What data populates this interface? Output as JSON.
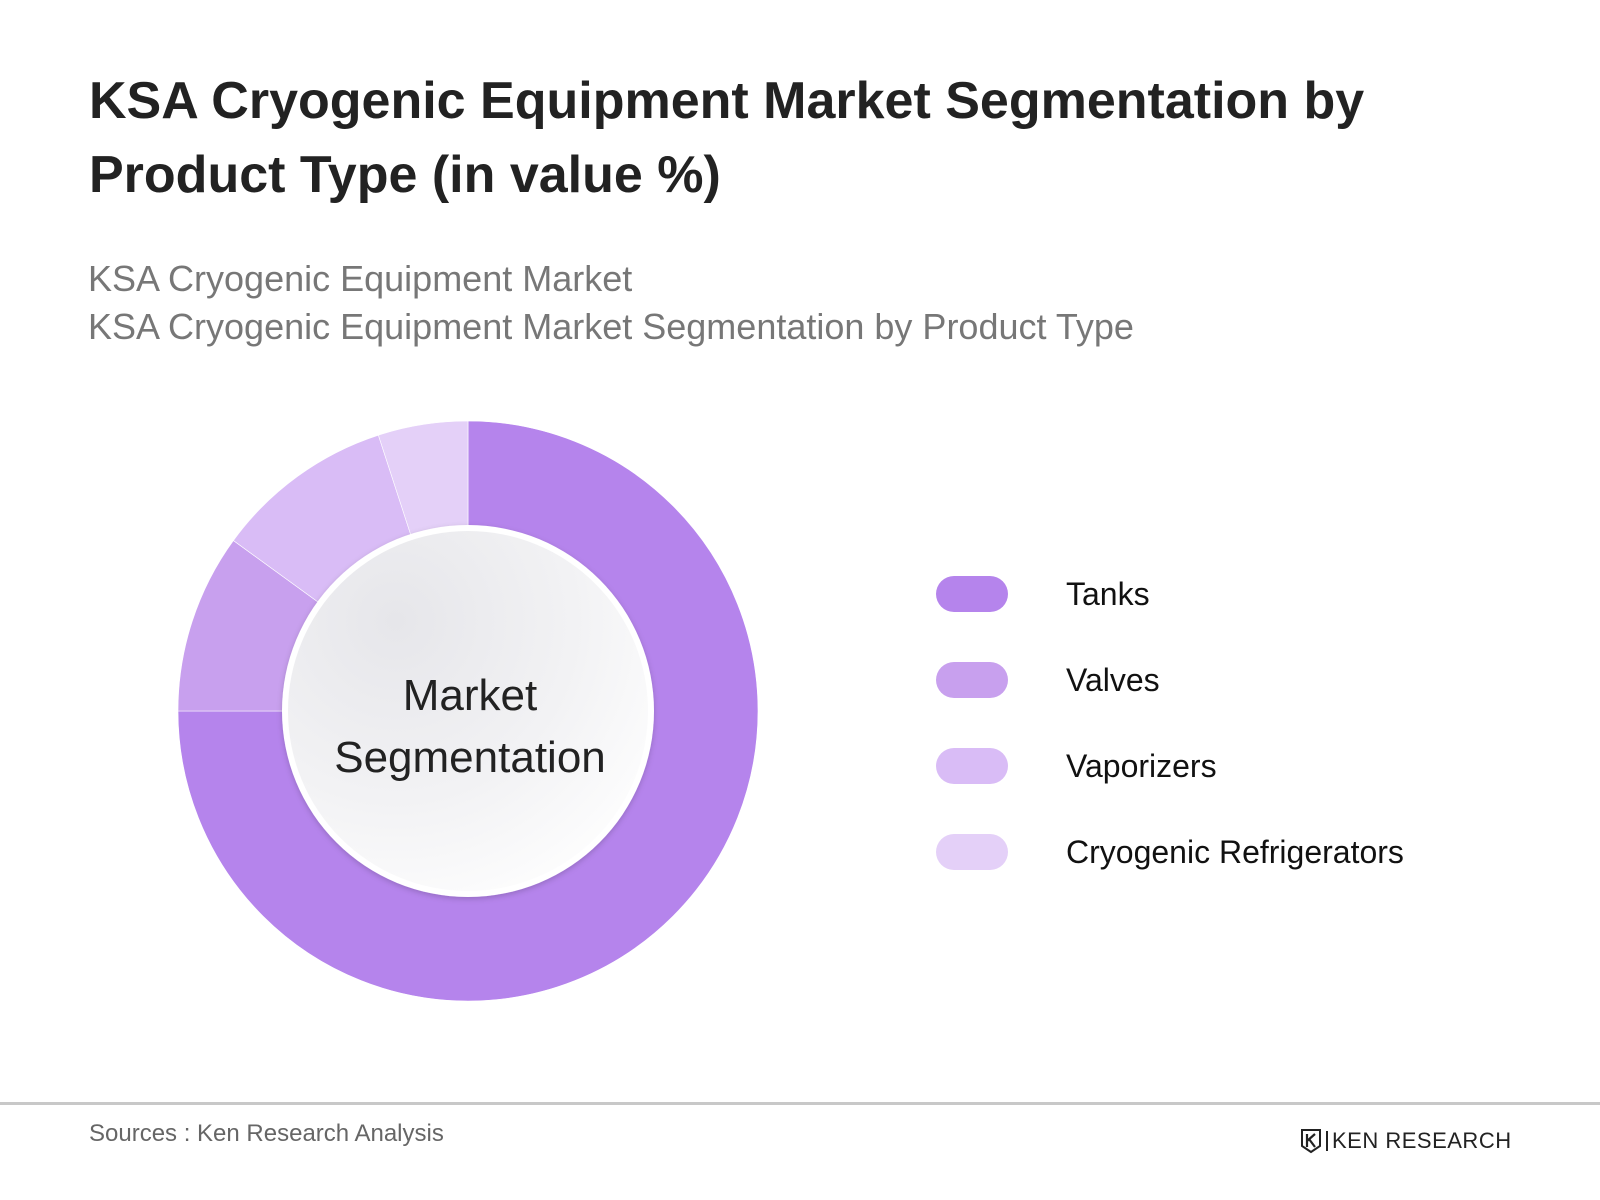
{
  "header": {
    "title": "KSA Cryogenic Equipment Market Segmentation by Product Type (in value %)",
    "subtitle_line1": "KSA Cryogenic Equipment Market",
    "subtitle_line2": "KSA Cryogenic Equipment Market Segmentation by Product Type"
  },
  "center_label": {
    "line1": "Market",
    "line2": "Segmentation"
  },
  "footer": {
    "sources": "Sources : Ken Research Analysis",
    "brand": "KEN RESEARCH",
    "brand_icon": "ken-research-logo-icon"
  },
  "chart_data": {
    "type": "pie",
    "subtype": "donut",
    "title": "KSA Cryogenic Equipment Market Segmentation by Product Type (in value %)",
    "legend_position": "right",
    "categories": [
      "Tanks",
      "Valves",
      "Vaporizers",
      "Cryogenic Refrigerators"
    ],
    "values": [
      75,
      10,
      10,
      5
    ],
    "unit": "%",
    "colors": [
      "#b584ec",
      "#c8a0ee",
      "#d9bcf6",
      "#e4d0f8"
    ]
  }
}
